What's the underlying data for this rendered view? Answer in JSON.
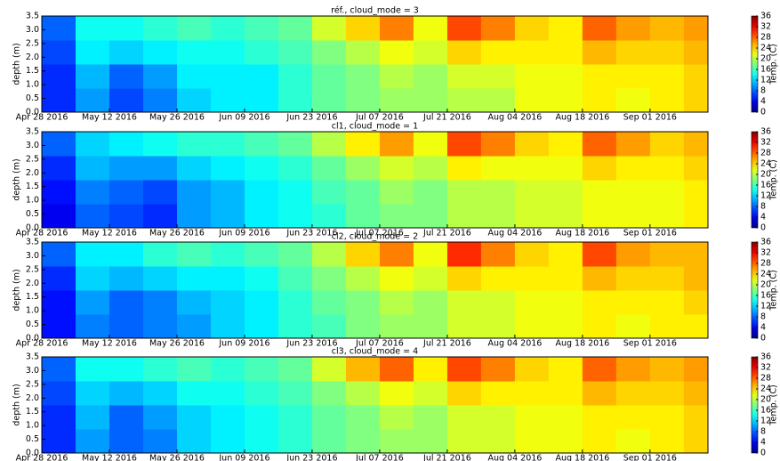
{
  "chart_data": [
    {
      "type": "heatmap",
      "title": "réf., cloud_mode = 3",
      "ylabel": "depth (m)",
      "colorbar_label": "Temp. (C)",
      "colormap": "jet",
      "x": [
        "2016-04-28",
        "2016-05-05",
        "2016-05-12",
        "2016-05-19",
        "2016-05-26",
        "2016-06-02",
        "2016-06-09",
        "2016-06-16",
        "2016-06-23",
        "2016-06-30",
        "2016-07-07",
        "2016-07-14",
        "2016-07-21",
        "2016-07-28",
        "2016-08-04",
        "2016-08-11",
        "2016-08-18",
        "2016-08-25",
        "2016-09-01",
        "2016-09-08",
        "2016-09-13"
      ],
      "y": [
        0,
        0.875,
        1.75,
        2.625,
        3.5
      ],
      "z": [
        [
          6,
          10,
          7,
          9,
          12,
          13,
          13,
          15,
          17,
          18,
          19,
          19,
          20,
          20,
          22,
          22,
          23,
          22,
          23,
          24
        ],
        [
          6,
          11,
          8,
          10,
          13,
          13,
          13,
          15,
          17,
          18,
          20,
          19,
          21,
          21,
          22,
          22,
          23,
          23,
          23,
          24
        ],
        [
          7,
          13,
          12,
          13,
          14,
          14,
          15,
          16,
          18,
          20,
          22,
          21,
          24,
          23,
          23,
          23,
          25,
          24,
          24,
          25
        ],
        [
          8,
          14,
          14,
          15,
          16,
          15,
          16,
          17,
          21,
          24,
          27,
          22,
          29,
          27,
          24,
          23,
          28,
          26,
          25,
          26
        ]
      ],
      "xlim": [
        "2016-04-28",
        "2016-09-13"
      ],
      "xticks": [
        {
          "value": "2016-04-28",
          "label": "Apr 28 2016"
        },
        {
          "value": "2016-05-12",
          "label": "May 12 2016"
        },
        {
          "value": "2016-05-26",
          "label": "May 26 2016"
        },
        {
          "value": "2016-06-09",
          "label": "Jun 09 2016"
        },
        {
          "value": "2016-06-23",
          "label": "Jun 23 2016"
        },
        {
          "value": "2016-07-07",
          "label": "Jul 07 2016"
        },
        {
          "value": "2016-07-21",
          "label": "Jul 21 2016"
        },
        {
          "value": "2016-08-04",
          "label": "Aug 04 2016"
        },
        {
          "value": "2016-08-18",
          "label": "Aug 18 2016"
        },
        {
          "value": "2016-09-01",
          "label": "Sep 01 2016"
        }
      ],
      "ylim": [
        0,
        3.5
      ],
      "yticks": [
        {
          "value": 0,
          "label": "0.0"
        },
        0.5,
        {
          "value": 1,
          "label": "1.0"
        },
        1.5,
        {
          "value": 2,
          "label": "2.0"
        },
        2.5,
        {
          "value": 3,
          "label": "3.0"
        },
        3.5
      ],
      "zlim": [
        0,
        36
      ],
      "zticks": [
        0,
        4,
        8,
        12,
        16,
        20,
        24,
        28,
        32,
        36
      ]
    },
    {
      "type": "heatmap",
      "title": "cl1, cloud_mode = 1",
      "ylabel": "depth (m)",
      "colorbar_label": "Temp. (C)",
      "colormap": "jet",
      "x": [
        "2016-04-28",
        "2016-05-05",
        "2016-05-12",
        "2016-05-19",
        "2016-05-26",
        "2016-06-02",
        "2016-06-09",
        "2016-06-16",
        "2016-06-23",
        "2016-06-30",
        "2016-07-07",
        "2016-07-14",
        "2016-07-21",
        "2016-07-28",
        "2016-08-04",
        "2016-08-11",
        "2016-08-18",
        "2016-08-25",
        "2016-09-01",
        "2016-09-08",
        "2016-09-13"
      ],
      "y": [
        0,
        0.875,
        1.75,
        2.625,
        3.5
      ],
      "z": [
        [
          4,
          8,
          7,
          6,
          10,
          11,
          13,
          14,
          15,
          17,
          18,
          18,
          20,
          20,
          21,
          21,
          22,
          22,
          22,
          23
        ],
        [
          5,
          9,
          8,
          7,
          10,
          11,
          13,
          14,
          16,
          17,
          19,
          18,
          20,
          20,
          21,
          21,
          22,
          22,
          22,
          23
        ],
        [
          6,
          11,
          10,
          10,
          12,
          13,
          14,
          15,
          17,
          19,
          21,
          20,
          23,
          22,
          22,
          22,
          24,
          23,
          23,
          24
        ],
        [
          8,
          12,
          13,
          14,
          15,
          15,
          16,
          17,
          20,
          23,
          26,
          22,
          29,
          27,
          24,
          23,
          28,
          26,
          24,
          25
        ]
      ],
      "xlim": [
        "2016-04-28",
        "2016-09-13"
      ],
      "xticks": [
        {
          "value": "2016-04-28",
          "label": "Apr 28 2016"
        },
        {
          "value": "2016-05-12",
          "label": "May 12 2016"
        },
        {
          "value": "2016-05-26",
          "label": "May 26 2016"
        },
        {
          "value": "2016-06-09",
          "label": "Jun 09 2016"
        },
        {
          "value": "2016-06-23",
          "label": "Jun 23 2016"
        },
        {
          "value": "2016-07-07",
          "label": "Jul 07 2016"
        },
        {
          "value": "2016-07-21",
          "label": "Jul 21 2016"
        },
        {
          "value": "2016-08-04",
          "label": "Aug 04 2016"
        },
        {
          "value": "2016-08-18",
          "label": "Aug 18 2016"
        },
        {
          "value": "2016-09-01",
          "label": "Sep 01 2016"
        }
      ],
      "ylim": [
        0,
        3.5
      ],
      "yticks": [
        {
          "value": 0,
          "label": "0.0"
        },
        0.5,
        {
          "value": 1,
          "label": "1.0"
        },
        1.5,
        {
          "value": 2,
          "label": "2.0"
        },
        2.5,
        {
          "value": 3,
          "label": "3.0"
        },
        3.5
      ],
      "zlim": [
        0,
        36
      ],
      "zticks": [
        0,
        4,
        8,
        12,
        16,
        20,
        24,
        28,
        32,
        36
      ]
    },
    {
      "type": "heatmap",
      "title": "cl2, cloud_mode = 2",
      "ylabel": "depth (m)",
      "colorbar_label": "Temp. (C)",
      "colormap": "jet",
      "x": [
        "2016-04-28",
        "2016-05-05",
        "2016-05-12",
        "2016-05-19",
        "2016-05-26",
        "2016-06-02",
        "2016-06-09",
        "2016-06-16",
        "2016-06-23",
        "2016-06-30",
        "2016-07-07",
        "2016-07-14",
        "2016-07-21",
        "2016-07-28",
        "2016-08-04",
        "2016-08-11",
        "2016-08-18",
        "2016-08-25",
        "2016-09-01",
        "2016-09-08",
        "2016-09-13"
      ],
      "y": [
        0,
        0.875,
        1.75,
        2.625,
        3.5
      ],
      "z": [
        [
          5,
          9,
          8,
          9,
          10,
          12,
          13,
          15,
          16,
          18,
          19,
          19,
          21,
          21,
          22,
          22,
          23,
          22,
          23,
          23
        ],
        [
          5,
          10,
          8,
          9,
          11,
          12,
          13,
          15,
          17,
          18,
          20,
          19,
          21,
          21,
          22,
          22,
          23,
          23,
          23,
          24
        ],
        [
          6,
          12,
          11,
          12,
          13,
          13,
          14,
          16,
          18,
          20,
          22,
          21,
          24,
          23,
          23,
          23,
          25,
          24,
          24,
          25
        ],
        [
          8,
          13,
          13,
          15,
          16,
          15,
          16,
          17,
          20,
          24,
          27,
          22,
          30,
          27,
          24,
          23,
          29,
          26,
          25,
          25
        ]
      ],
      "xlim": [
        "2016-04-28",
        "2016-09-13"
      ],
      "xticks": [
        {
          "value": "2016-04-28",
          "label": "Apr 28 2016"
        },
        {
          "value": "2016-05-12",
          "label": "May 12 2016"
        },
        {
          "value": "2016-05-26",
          "label": "May 26 2016"
        },
        {
          "value": "2016-06-09",
          "label": "Jun 09 2016"
        },
        {
          "value": "2016-06-23",
          "label": "Jun 23 2016"
        },
        {
          "value": "2016-07-07",
          "label": "Jul 07 2016"
        },
        {
          "value": "2016-07-21",
          "label": "Jul 21 2016"
        },
        {
          "value": "2016-08-04",
          "label": "Aug 04 2016"
        },
        {
          "value": "2016-08-18",
          "label": "Aug 18 2016"
        },
        {
          "value": "2016-09-01",
          "label": "Sep 01 2016"
        }
      ],
      "ylim": [
        0,
        3.5
      ],
      "yticks": [
        {
          "value": 0,
          "label": "0.0"
        },
        0.5,
        {
          "value": 1,
          "label": "1.0"
        },
        1.5,
        {
          "value": 2,
          "label": "2.0"
        },
        2.5,
        {
          "value": 3,
          "label": "3.0"
        },
        3.5
      ],
      "zlim": [
        0,
        36
      ],
      "zticks": [
        0,
        4,
        8,
        12,
        16,
        20,
        24,
        28,
        32,
        36
      ]
    },
    {
      "type": "heatmap",
      "title": "cl3, cloud_mode = 4",
      "ylabel": "depth (m)",
      "colorbar_label": "Temp. (C)",
      "colormap": "jet",
      "x": [
        "2016-04-28",
        "2016-05-05",
        "2016-05-12",
        "2016-05-19",
        "2016-05-26",
        "2016-06-02",
        "2016-06-09",
        "2016-06-16",
        "2016-06-23",
        "2016-06-30",
        "2016-07-07",
        "2016-07-14",
        "2016-07-21",
        "2016-07-28",
        "2016-08-04",
        "2016-08-11",
        "2016-08-18",
        "2016-08-25",
        "2016-09-01",
        "2016-09-08",
        "2016-09-13"
      ],
      "y": [
        0,
        0.875,
        1.75,
        2.625,
        3.5
      ],
      "z": [
        [
          6,
          10,
          8,
          9,
          12,
          13,
          14,
          15,
          17,
          18,
          19,
          19,
          21,
          21,
          22,
          22,
          23,
          22,
          23,
          24
        ],
        [
          6,
          11,
          8,
          10,
          12,
          13,
          14,
          15,
          17,
          18,
          20,
          19,
          21,
          21,
          22,
          22,
          23,
          23,
          23,
          24
        ],
        [
          7,
          12,
          11,
          12,
          14,
          14,
          15,
          16,
          18,
          20,
          22,
          21,
          24,
          23,
          23,
          23,
          25,
          24,
          24,
          25
        ],
        [
          8,
          14,
          14,
          15,
          16,
          15,
          16,
          17,
          21,
          25,
          28,
          23,
          29,
          27,
          24,
          23,
          28,
          26,
          25,
          26
        ]
      ],
      "xlim": [
        "2016-04-28",
        "2016-09-13"
      ],
      "xticks": [
        {
          "value": "2016-04-28",
          "label": "Apr 28 2016"
        },
        {
          "value": "2016-05-12",
          "label": "May 12 2016"
        },
        {
          "value": "2016-05-26",
          "label": "May 26 2016"
        },
        {
          "value": "2016-06-09",
          "label": "Jun 09 2016"
        },
        {
          "value": "2016-06-23",
          "label": "Jun 23 2016"
        },
        {
          "value": "2016-07-07",
          "label": "Jul 07 2016"
        },
        {
          "value": "2016-07-21",
          "label": "Jul 21 2016"
        },
        {
          "value": "2016-08-04",
          "label": "Aug 04 2016"
        },
        {
          "value": "2016-08-18",
          "label": "Aug 18 2016"
        },
        {
          "value": "2016-09-01",
          "label": "Sep 01 2016"
        }
      ],
      "ylim": [
        0,
        3.5
      ],
      "yticks": [
        {
          "value": 0,
          "label": "0.0"
        },
        0.5,
        {
          "value": 1,
          "label": "1.0"
        },
        1.5,
        {
          "value": 2,
          "label": "2.0"
        },
        2.5,
        {
          "value": 3,
          "label": "3.0"
        },
        3.5
      ],
      "zlim": [
        0,
        36
      ],
      "zticks": [
        0,
        4,
        8,
        12,
        16,
        20,
        24,
        28,
        32,
        36
      ]
    }
  ]
}
